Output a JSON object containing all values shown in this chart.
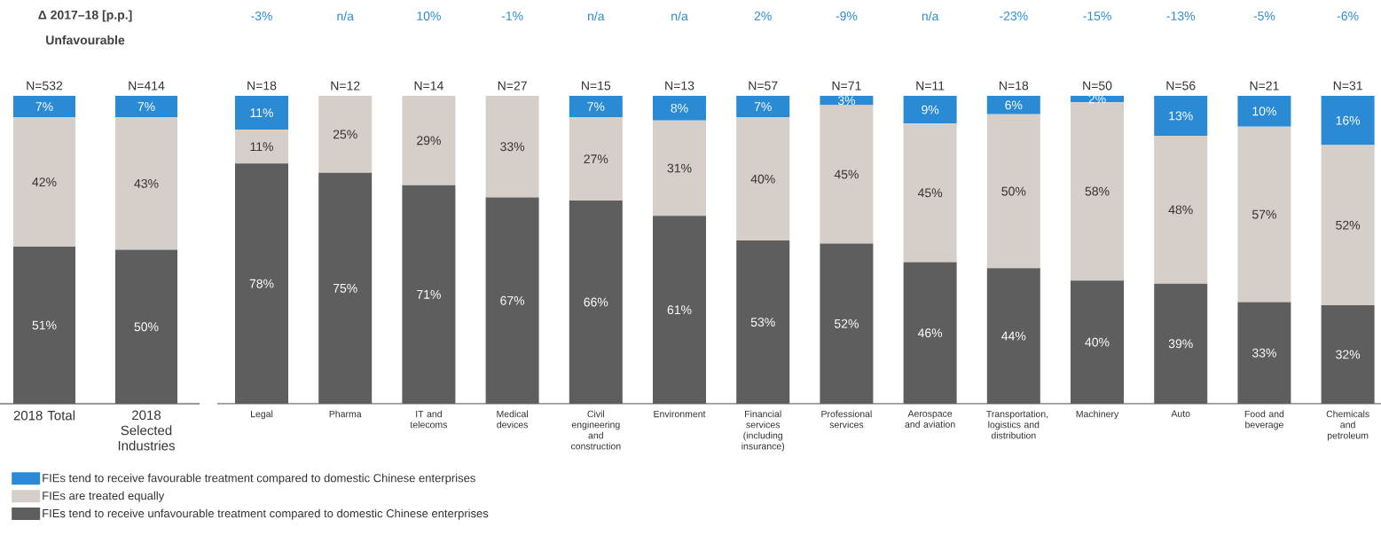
{
  "chart_data": [
    {
      "type": "bar",
      "stacked": true,
      "ylim": [
        0,
        100
      ],
      "categories": [
        "2018 Total",
        "2018 Selected Industries"
      ],
      "series": [
        {
          "color": "#5e5e5e",
          "values": [
            51,
            50
          ],
          "value_labels": [
            "51%",
            "50%"
          ]
        },
        {
          "color": "#d6cec9",
          "values": [
            42,
            43
          ],
          "value_labels": [
            "42%",
            "43%"
          ]
        },
        {
          "color": "#2a8ad4",
          "values": [
            7,
            7
          ],
          "value_labels": [
            "7%",
            "7%"
          ]
        }
      ],
      "title": "Δ 2017–18 [p.p.]",
      "subtitle": "Unfavourable",
      "annotations": [
        {
          "text": "N=532",
          "x": "2018 Total",
          "y": 100
        },
        {
          "text": "N=414",
          "x": "2018 Selected Industries",
          "y": 100
        }
      ]
    },
    {
      "type": "bar",
      "stacked": true,
      "legend": "bottom left",
      "ylim": [
        0,
        100
      ],
      "categories": [
        "Legal",
        "Pharma",
        "IT and telecoms",
        "Medical devices",
        "Civil engineering and construction",
        "Environment",
        "Financial services (including insurance)",
        "Professional services",
        "Aerospace and aviation",
        "Transportation, logistics and distribution",
        "Machinery",
        "Auto",
        "Food and beverage",
        "Chemicals and petroleum"
      ],
      "series": [
        {
          "name": "FIEs tend to receive unfavourable treatment compared to domestic Chinese enterprises",
          "color": "#5e5e5e",
          "values": [
            78,
            75,
            71,
            67,
            66,
            61,
            53,
            52,
            46,
            44,
            40,
            39,
            33,
            32
          ],
          "value_labels": [
            "78%",
            "75%",
            "71%",
            "67%",
            "66%",
            "61%",
            "53%",
            "52%",
            "46%",
            "44%",
            "40%",
            "39%",
            "33%",
            "32%"
          ]
        },
        {
          "name": "FIEs are treated equally",
          "color": "#d6cec9",
          "values": [
            11,
            25,
            29,
            33,
            27,
            31,
            40,
            45,
            45,
            50,
            58,
            48,
            57,
            52
          ],
          "value_labels": [
            "11%",
            "25%",
            "29%",
            "33%",
            "27%",
            "31%",
            "40%",
            "45%",
            "45%",
            "50%",
            "58%",
            "48%",
            "57%",
            "52%"
          ]
        },
        {
          "name": "FIEs tend to receive favourable treatment compared to domestic Chinese enterprises",
          "color": "#2a8ad4",
          "values": [
            11,
            null,
            null,
            null,
            7,
            8,
            7,
            3,
            9,
            6,
            2,
            13,
            10,
            16
          ],
          "value_labels": [
            "11%",
            null,
            null,
            null,
            "7%",
            "8%",
            "7%",
            "3%",
            "9%",
            "6%",
            "2%",
            "13%",
            "10%",
            "16%"
          ]
        }
      ],
      "annotations": [
        {
          "text": "N=18",
          "x": "Legal",
          "y": 100
        },
        {
          "text": "N=12",
          "x": "Pharma",
          "y": 100
        },
        {
          "text": "N=14",
          "x": "IT and telecoms",
          "y": 100
        },
        {
          "text": "N=27",
          "x": "Medical devices",
          "y": 100
        },
        {
          "text": "N=15",
          "x": "Civil engineering and construction",
          "y": 100
        },
        {
          "text": "N=13",
          "x": "Environment",
          "y": 100
        },
        {
          "text": "N=57",
          "x": "Financial services (including insurance)",
          "y": 100
        },
        {
          "text": "N=71",
          "x": "Professional services",
          "y": 100
        },
        {
          "text": "N=11",
          "x": "Aerospace and aviation",
          "y": 100
        },
        {
          "text": "N=18",
          "x": "Transportation, logistics and distribution",
          "y": 100
        },
        {
          "text": "N=50",
          "x": "Machinery",
          "y": 100
        },
        {
          "text": "N=56",
          "x": "Auto",
          "y": 100
        },
        {
          "text": "N=21",
          "x": "Food and beverage",
          "y": 100
        },
        {
          "text": "N=31",
          "x": "Chemicals and petroleum",
          "y": 100
        },
        "-3%",
        "n/a",
        "10%",
        "-1%",
        "n/a",
        "n/a",
        "2%",
        "-9%",
        "n/a",
        "-23%",
        "-15%",
        "-13%",
        "-5%",
        "-6%"
      ]
    }
  ]
}
